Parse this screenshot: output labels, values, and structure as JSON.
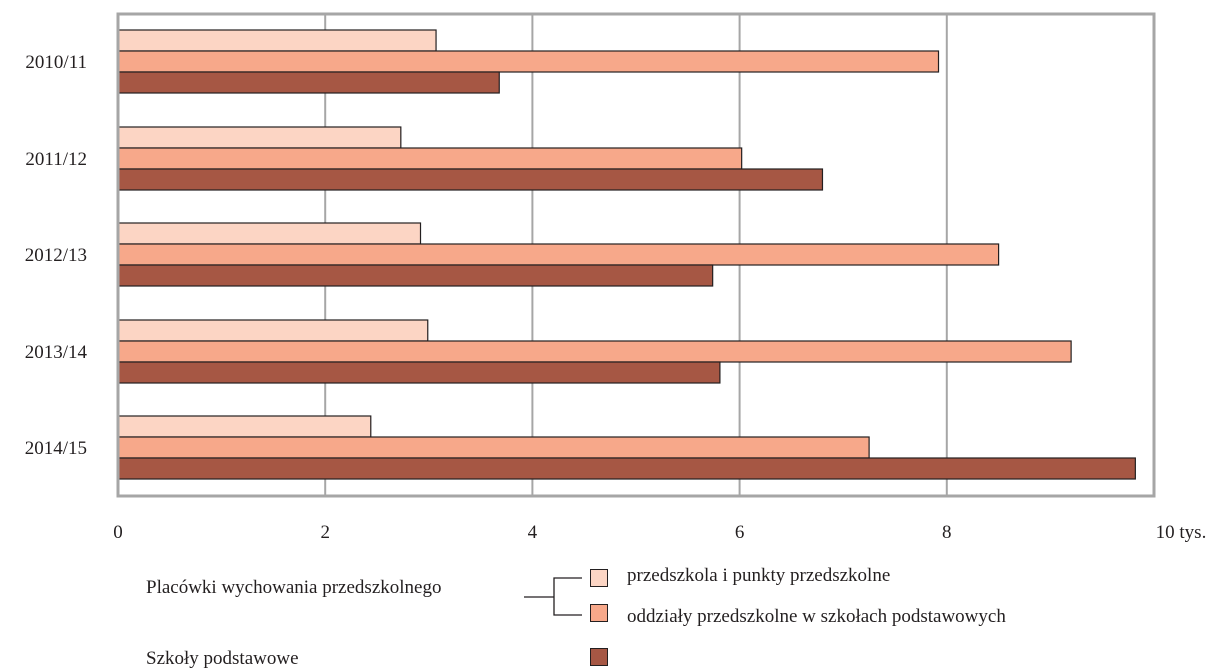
{
  "chart_data": {
    "type": "bar",
    "orientation": "horizontal",
    "categories": [
      "2010/11",
      "2011/12",
      "2012/13",
      "2013/14",
      "2014/15"
    ],
    "series": [
      {
        "name": "przedszkola i punkty przedszkolne",
        "color": "#fcd5c4",
        "values": [
          3.07,
          2.73,
          2.92,
          2.99,
          2.44
        ]
      },
      {
        "name": "oddziały przedszkolne w szkołach podstawowych",
        "color": "#f7a88a",
        "values": [
          7.92,
          6.02,
          8.5,
          9.2,
          7.25
        ]
      },
      {
        "name": "Szkoły podstawowe",
        "color": "#a65744",
        "values": [
          3.68,
          6.8,
          5.74,
          5.81,
          9.82
        ]
      }
    ],
    "xlim": [
      0,
      10
    ],
    "x_ticks": [
      "0",
      "2",
      "4",
      "6",
      "8",
      "10 tys."
    ],
    "grid": true,
    "title": "",
    "xlabel": "",
    "ylabel": ""
  },
  "legend": {
    "group_label": "Placówki wychowania przedszkolnego",
    "item1": "przedszkola i punkty przedszkolne",
    "item2": "oddziały przedszkolne w szkołach podstawowych",
    "item3": "Szkoły podstawowe"
  }
}
